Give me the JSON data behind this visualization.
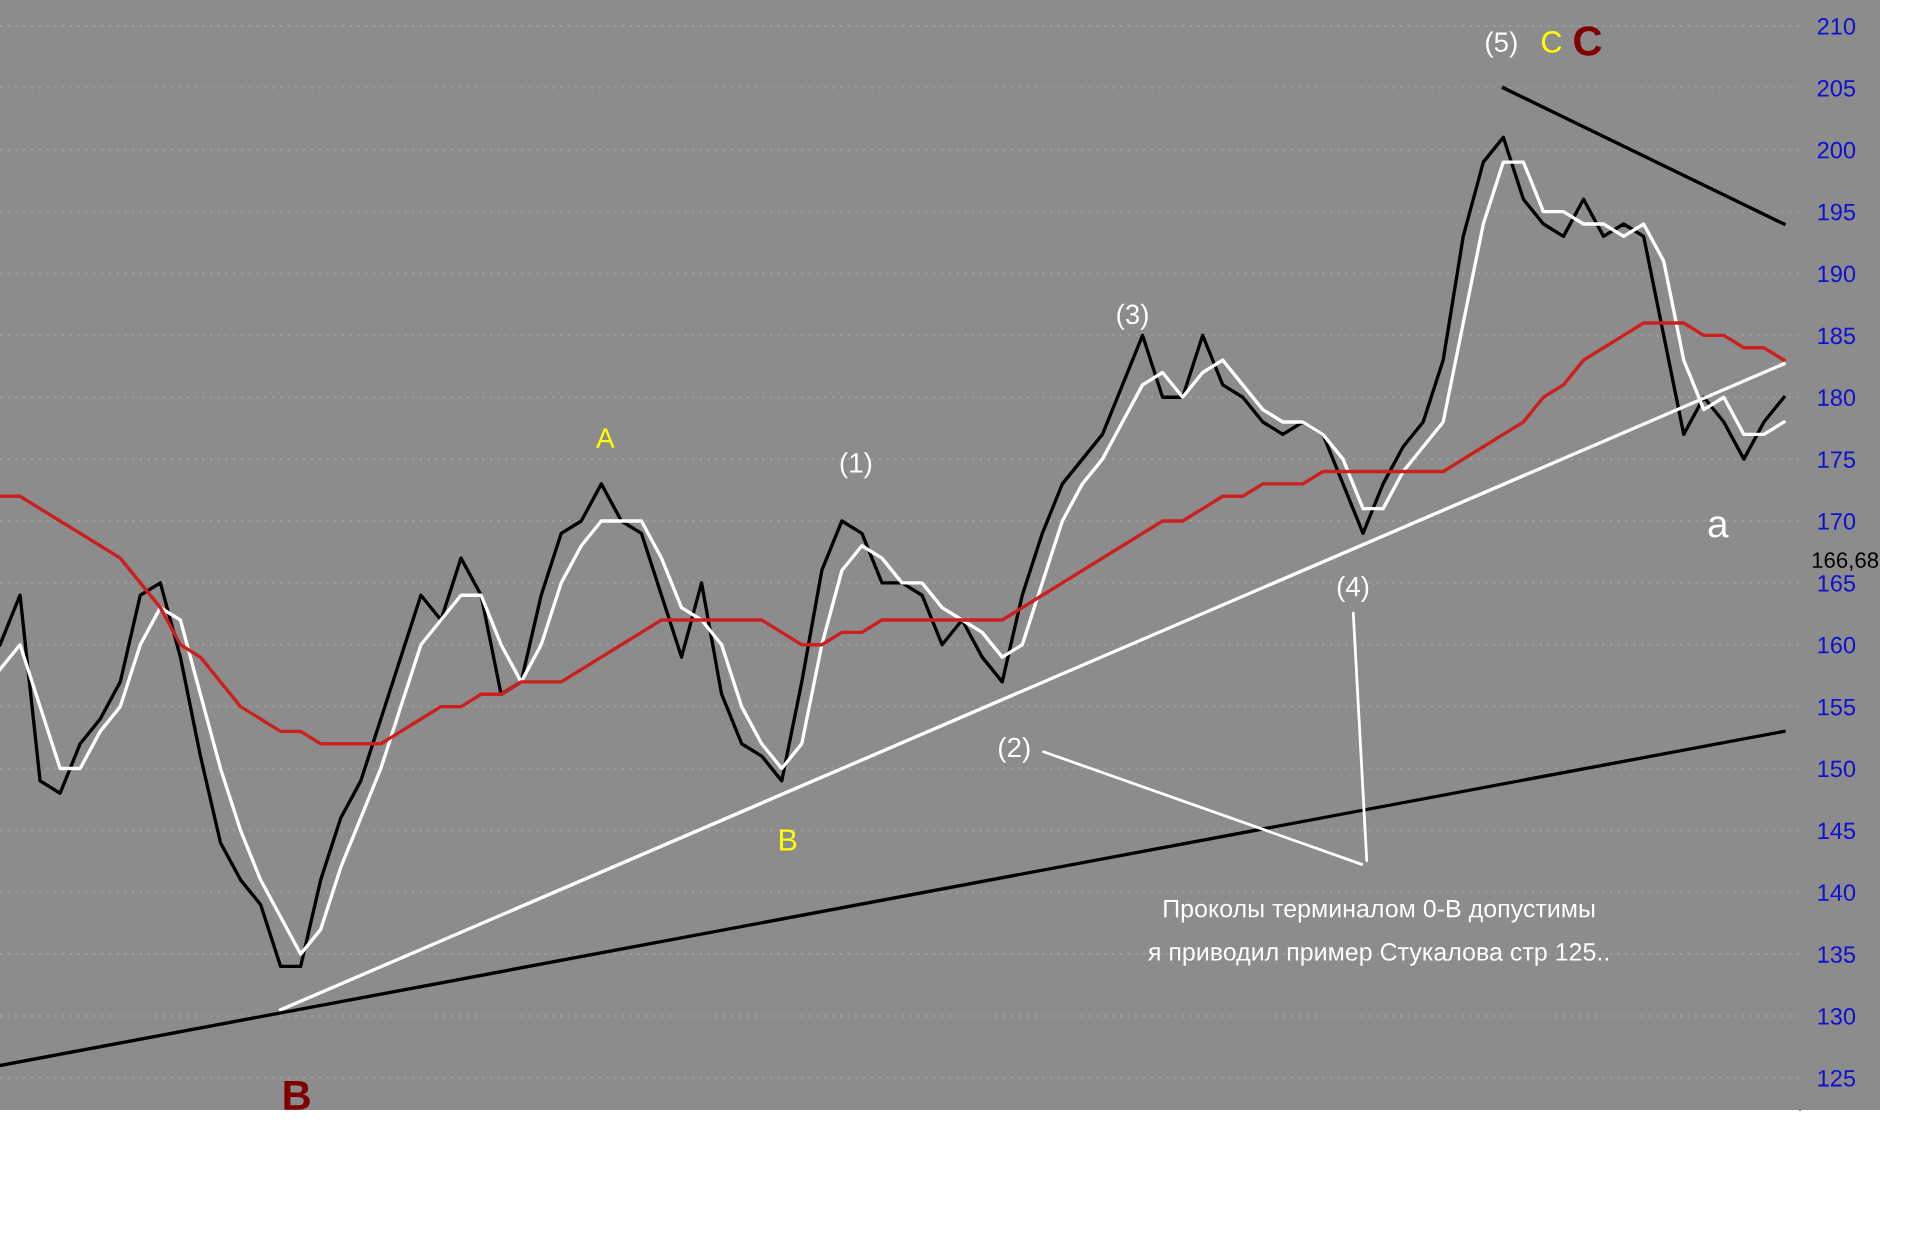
{
  "chart_data": {
    "type": "line",
    "categories": [
      null,
      null,
      null,
      null,
      null,
      null,
      null,
      null,
      null,
      null,
      null,
      null,
      null,
      null,
      null,
      null,
      null,
      null,
      null,
      null,
      null,
      null,
      null,
      null,
      null,
      null,
      null,
      null,
      null,
      null,
      null,
      null,
      null,
      null,
      null,
      null,
      null,
      null,
      null,
      null,
      null,
      null,
      null,
      null,
      null,
      null,
      null,
      null,
      null,
      null,
      null,
      null,
      null,
      null,
      null,
      null,
      null,
      null,
      null,
      null,
      null,
      null,
      null,
      null,
      null,
      null,
      null,
      null,
      null,
      null,
      null,
      null,
      null,
      null,
      null,
      null,
      null,
      null,
      null,
      null,
      null,
      null,
      null,
      null,
      null,
      null,
      null,
      null,
      null,
      null
    ],
    "series": [
      {
        "color": "#000000",
        "values": [
          160,
          164,
          149,
          148,
          152,
          154,
          157,
          164,
          165,
          159,
          151,
          144,
          141,
          139,
          134,
          134,
          141,
          146,
          149,
          154,
          159,
          164,
          162,
          167,
          164,
          156,
          157,
          164,
          169,
          170,
          173,
          170,
          169,
          164,
          159,
          165,
          156,
          152,
          151,
          149,
          157,
          166,
          170,
          169,
          165,
          165,
          164,
          160,
          162,
          159,
          157,
          164,
          169,
          173,
          175,
          177,
          181,
          185,
          180,
          180,
          185,
          181,
          180,
          178,
          177,
          178,
          177,
          173,
          169,
          173,
          176,
          178,
          183,
          193,
          199,
          201,
          196,
          194,
          193,
          196,
          193,
          194,
          193,
          185,
          177,
          180,
          178,
          175,
          178,
          180
        ]
      },
      {
        "color": "#ffffff",
        "values": [
          158,
          160,
          155,
          150,
          150,
          153,
          155,
          160,
          163,
          162,
          156,
          150,
          145,
          141,
          138,
          135,
          137,
          142,
          146,
          150,
          155,
          160,
          162,
          164,
          164,
          160,
          157,
          160,
          165,
          168,
          170,
          170,
          170,
          167,
          163,
          162,
          160,
          155,
          152,
          150,
          152,
          160,
          166,
          168,
          167,
          165,
          165,
          163,
          162,
          161,
          159,
          160,
          165,
          170,
          173,
          175,
          178,
          181,
          182,
          180,
          182,
          183,
          181,
          179,
          178,
          178,
          177,
          175,
          171,
          171,
          174,
          176,
          178,
          186,
          194,
          199,
          199,
          195,
          195,
          194,
          194,
          193,
          194,
          191,
          183,
          179,
          180,
          177,
          177,
          178
        ]
      },
      {
        "color": "#cc1f1f",
        "values": [
          172,
          172,
          171,
          170,
          169,
          168,
          167,
          165,
          163,
          160,
          159,
          157,
          155,
          154,
          153,
          153,
          152,
          152,
          152,
          152,
          153,
          154,
          155,
          155,
          156,
          156,
          157,
          157,
          157,
          158,
          159,
          160,
          161,
          162,
          162,
          162,
          162,
          162,
          162,
          161,
          160,
          160,
          161,
          161,
          162,
          162,
          162,
          162,
          162,
          162,
          162,
          163,
          164,
          165,
          166,
          167,
          168,
          169,
          170,
          170,
          171,
          172,
          172,
          173,
          173,
          173,
          174,
          174,
          174,
          174,
          174,
          174,
          174,
          175,
          176,
          177,
          178,
          180,
          181,
          183,
          184,
          185,
          186,
          186,
          186,
          185,
          185,
          184,
          184,
          183
        ]
      },
      {
        "color": "#ffffff",
        "values": [
          null,
          null,
          null,
          null,
          null,
          null,
          null,
          null,
          null,
          null,
          null,
          null,
          null,
          null,
          130.5,
          null,
          null,
          null,
          null,
          null,
          null,
          null,
          null,
          null,
          null,
          null,
          null,
          null,
          null,
          null,
          null,
          null,
          null,
          null,
          null,
          null,
          null,
          null,
          null,
          null,
          null,
          null,
          null,
          null,
          null,
          null,
          null,
          null,
          null,
          null,
          null,
          null,
          null,
          null,
          null,
          null,
          null,
          null,
          null,
          null,
          null,
          null,
          null,
          null,
          null,
          null,
          null,
          null,
          null,
          null,
          null,
          null,
          null,
          null,
          null,
          null,
          null,
          null,
          null,
          null,
          null,
          null,
          null,
          null,
          null,
          null,
          null,
          null,
          null,
          182.7
        ]
      },
      {
        "color": "#000000",
        "values": [
          126,
          null,
          null,
          null,
          null,
          null,
          null,
          null,
          null,
          null,
          null,
          null,
          null,
          null,
          null,
          null,
          null,
          null,
          null,
          null,
          null,
          null,
          null,
          null,
          null,
          null,
          null,
          null,
          null,
          null,
          null,
          null,
          null,
          null,
          null,
          null,
          null,
          null,
          null,
          null,
          null,
          null,
          null,
          null,
          null,
          null,
          null,
          null,
          null,
          null,
          null,
          null,
          null,
          null,
          null,
          null,
          null,
          null,
          null,
          null,
          null,
          null,
          null,
          null,
          null,
          null,
          null,
          null,
          null,
          null,
          null,
          null,
          null,
          null,
          null,
          null,
          null,
          null,
          null,
          null,
          null,
          null,
          null,
          null,
          null,
          null,
          null,
          null,
          null,
          153
        ]
      },
      {
        "color": "#000000",
        "values": [
          null,
          null,
          null,
          null,
          null,
          null,
          null,
          null,
          null,
          null,
          null,
          null,
          null,
          null,
          null,
          null,
          null,
          null,
          null,
          null,
          null,
          null,
          null,
          null,
          null,
          null,
          null,
          null,
          null,
          null,
          null,
          null,
          null,
          null,
          null,
          null,
          null,
          null,
          null,
          null,
          null,
          null,
          null,
          null,
          null,
          null,
          null,
          null,
          null,
          null,
          null,
          null,
          null,
          null,
          null,
          null,
          null,
          null,
          null,
          null,
          null,
          null,
          null,
          null,
          null,
          null,
          null,
          null,
          null,
          null,
          null,
          null,
          null,
          null,
          null,
          205,
          null,
          null,
          null,
          null,
          null,
          null,
          null,
          null,
          null,
          null,
          null,
          null,
          null,
          194
        ]
      }
    ],
    "ylim": [
      122.4,
      212.1
    ],
    "yticks": [
      125,
      130,
      135,
      140,
      145,
      150,
      155,
      160,
      165,
      170,
      175,
      180,
      185,
      190,
      195,
      200,
      205,
      210
    ],
    "grid": "y",
    "tick_labels": "y",
    "annotations": [
      "(5)",
      "C",
      "C",
      "A",
      "(1)",
      "(3)",
      "B",
      "(2)",
      "(4)",
      "a",
      "B",
      "Проколы терминалом 0-В допустимы",
      "я приводил пример Стукалова стр 125..",
      "166,68"
    ]
  }
}
